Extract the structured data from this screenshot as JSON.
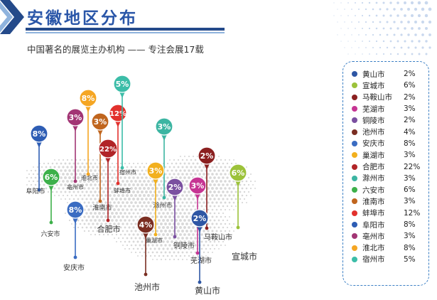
{
  "header": {
    "title": "安徽地区分布",
    "subtitle": "中国著名的展览主办机构 —— 专注会展17载"
  },
  "colors": {
    "title": "#2a56a8",
    "header_dark": "#244a8a",
    "header_light": "#8fb3dd",
    "legend_border": "#3b7fc4"
  },
  "chart_data": {
    "type": "map-pin",
    "unit": "%",
    "legend_position": "right",
    "series": [
      {
        "city": "黄山市",
        "value": 2,
        "label": "2%",
        "color": "#2e56a4"
      },
      {
        "city": "宣城市",
        "value": 6,
        "label": "6%",
        "color": "#9cc23a"
      },
      {
        "city": "马鞍山市",
        "value": 2,
        "label": "2%",
        "color": "#8b2020"
      },
      {
        "city": "芜湖市",
        "value": 3,
        "label": "3%",
        "color": "#c63593"
      },
      {
        "city": "铜陵市",
        "value": 2,
        "label": "2%",
        "color": "#7a4fa0"
      },
      {
        "city": "池州市",
        "value": 4,
        "label": "4%",
        "color": "#7a2e22"
      },
      {
        "city": "安庆市",
        "value": 8,
        "label": "8%",
        "color": "#3a6cc2"
      },
      {
        "city": "巢湖市",
        "value": 3,
        "label": "3%",
        "color": "#f2b01e"
      },
      {
        "city": "合肥市",
        "value": 22,
        "label": "22%",
        "color": "#b12427"
      },
      {
        "city": "滁州市",
        "value": 3,
        "label": "3%",
        "color": "#3cb5a2"
      },
      {
        "city": "六安市",
        "value": 6,
        "label": "6%",
        "color": "#3db04a"
      },
      {
        "city": "淮南市",
        "value": 3,
        "label": "3%",
        "color": "#c0651e"
      },
      {
        "city": "蚌埠市",
        "value": 12,
        "label": "12%",
        "color": "#e2312d"
      },
      {
        "city": "阜阳市",
        "value": 8,
        "label": "8%",
        "color": "#2e5db4"
      },
      {
        "city": "亳州市",
        "value": 3,
        "label": "3%",
        "color": "#a23574"
      },
      {
        "city": "淮北市",
        "value": 8,
        "label": "8%",
        "color": "#f5a623"
      },
      {
        "city": "宿州市",
        "value": 5,
        "label": "5%",
        "color": "#3cbda8"
      }
    ]
  }
}
